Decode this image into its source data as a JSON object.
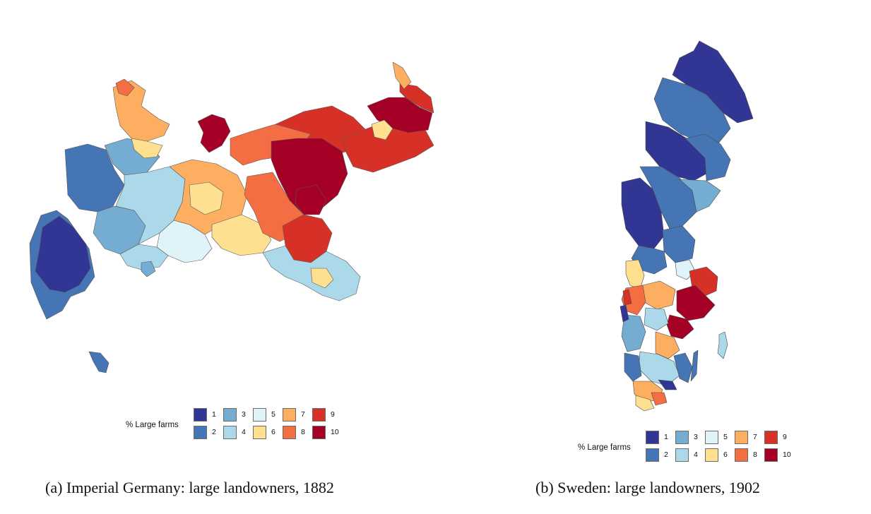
{
  "palette": {
    "1": "#313695",
    "2": "#4575b4",
    "3": "#74add1",
    "4": "#abd9e9",
    "5": "#e0f3f8",
    "6": "#fee090",
    "7": "#fdae61",
    "8": "#f46d43",
    "9": "#d73027",
    "10": "#a50026"
  },
  "panels": [
    {
      "id": "germany",
      "caption": "(a) Imperial Germany: large landowners, 1882",
      "legend": {
        "title": "% Large farms",
        "items": [
          {
            "label": "1",
            "class": "1"
          },
          {
            "label": "2",
            "class": "2"
          },
          {
            "label": "3",
            "class": "3"
          },
          {
            "label": "4",
            "class": "4"
          },
          {
            "label": "5",
            "class": "5"
          },
          {
            "label": "6",
            "class": "6"
          },
          {
            "label": "7",
            "class": "7"
          },
          {
            "label": "8",
            "class": "8"
          },
          {
            "label": "9",
            "class": "9"
          },
          {
            "label": "10",
            "class": "10"
          }
        ]
      }
    },
    {
      "id": "sweden",
      "caption": "(b) Sweden: large landowners, 1902",
      "legend": {
        "title": "% Large farms",
        "items": [
          {
            "label": "1",
            "class": "1"
          },
          {
            "label": "2",
            "class": "2"
          },
          {
            "label": "3",
            "class": "3"
          },
          {
            "label": "4",
            "class": "4"
          },
          {
            "label": "5",
            "class": "5"
          },
          {
            "label": "6",
            "class": "6"
          },
          {
            "label": "7",
            "class": "7"
          },
          {
            "label": "8",
            "class": "8"
          },
          {
            "label": "9",
            "class": "9"
          },
          {
            "label": "10",
            "class": "10"
          }
        ]
      }
    }
  ]
}
